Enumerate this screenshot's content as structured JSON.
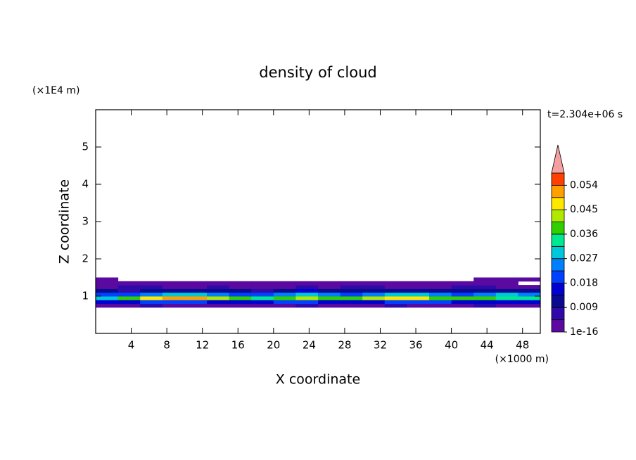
{
  "chart_data": {
    "type": "contour",
    "title": "density of cloud",
    "xlabel": "X coordinate",
    "ylabel": "Z coordinate",
    "xunit": "(×1000 m)",
    "yunit": "(×1E4 m)",
    "time_label": "t=2.304e+06 s",
    "xlim": [
      0,
      50
    ],
    "ylim": [
      0,
      6
    ],
    "xticks": [
      4,
      8,
      12,
      16,
      20,
      24,
      28,
      32,
      36,
      40,
      44,
      48
    ],
    "yticks": [
      1,
      2,
      3,
      4,
      5
    ],
    "levels": [
      1e-16,
      0.0045,
      0.009,
      0.0135,
      0.018,
      0.0225,
      0.027,
      0.0315,
      0.036,
      0.0405,
      0.045,
      0.0495,
      0.054,
      0.0585
    ],
    "colors": [
      "#5a0aa0",
      "#300aa8",
      "#0a0a90",
      "#0000d0",
      "#0040ff",
      "#0080ff",
      "#00c8d8",
      "#00e890",
      "#30d000",
      "#b0e800",
      "#ffe800",
      "#ffa000",
      "#ff4000"
    ],
    "extend_color": "#f4a0a0",
    "colorbar_ticks": [
      1e-16,
      0.009,
      0.018,
      0.027,
      0.036,
      0.045,
      0.054
    ],
    "field": {
      "x": [
        0,
        2.5,
        5,
        7.5,
        10,
        12.5,
        15,
        17.5,
        20,
        22.5,
        25,
        27.5,
        30,
        32.5,
        35,
        37.5,
        40,
        42.5,
        45,
        47.5
      ],
      "z": [
        0.7,
        0.8,
        0.9,
        1.0,
        1.1,
        1.2,
        1.3,
        1.4
      ],
      "values": [
        [
          0.003,
          0.004,
          0.005,
          0.004,
          0.003,
          0.004,
          0.004,
          0.003,
          0.004,
          0.005,
          0.004,
          0.003,
          0.004,
          0.005,
          0.004,
          0.003,
          0.004,
          0.005,
          0.004,
          0.003
        ],
        [
          0.014,
          0.016,
          0.02,
          0.022,
          0.018,
          0.016,
          0.014,
          0.015,
          0.018,
          0.02,
          0.016,
          0.015,
          0.017,
          0.02,
          0.022,
          0.018,
          0.016,
          0.015,
          0.017,
          0.016
        ],
        [
          0.03,
          0.038,
          0.045,
          0.05,
          0.052,
          0.042,
          0.036,
          0.034,
          0.04,
          0.044,
          0.038,
          0.036,
          0.042,
          0.046,
          0.048,
          0.04,
          0.036,
          0.038,
          0.035,
          0.032
        ],
        [
          0.02,
          0.022,
          0.025,
          0.03,
          0.028,
          0.024,
          0.02,
          0.022,
          0.026,
          0.03,
          0.025,
          0.022,
          0.024,
          0.027,
          0.03,
          0.026,
          0.022,
          0.025,
          0.028,
          0.024
        ],
        [
          0.01,
          0.008,
          0.01,
          0.012,
          0.009,
          0.011,
          0.01,
          0.008,
          0.012,
          0.014,
          0.01,
          0.011,
          0.013,
          0.01,
          0.009,
          0.012,
          0.011,
          0.01,
          0.009,
          0.012
        ],
        [
          0.004,
          0.005,
          0.006,
          0.004,
          0.003,
          0.005,
          0.004,
          0.003,
          0.004,
          0.005,
          0.004,
          0.006,
          0.005,
          0.004,
          0.003,
          0.004,
          0.005,
          0.006,
          0.004,
          0.003
        ],
        [
          0.002,
          0.002,
          0.003,
          0.003,
          0.003,
          0.003,
          0.002,
          0.002,
          0.002,
          0.001,
          0.003,
          0.003,
          0.003,
          0.002,
          0.002,
          0.002,
          0.002,
          0.003,
          0.002,
          0
        ],
        [
          0.001,
          0,
          0,
          0,
          0,
          0,
          0,
          0,
          0,
          0,
          0,
          0,
          0,
          0,
          0,
          0,
          0,
          0.001,
          0.001,
          0.001
        ]
      ]
    }
  }
}
